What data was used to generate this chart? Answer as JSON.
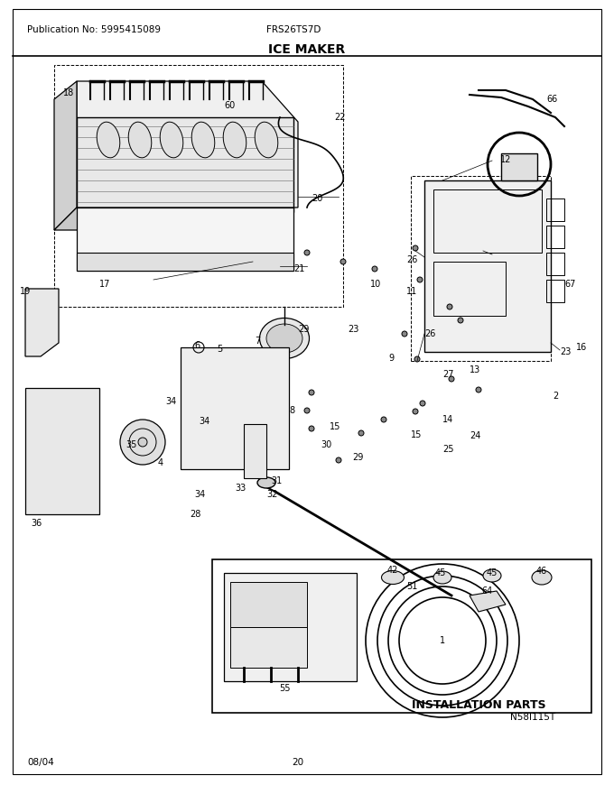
{
  "title": "ICE MAKER",
  "pub_no": "Publication No: 5995415089",
  "model": "FRS26TS7D",
  "date": "08/04",
  "page": "20",
  "install_label": "INSTALLATION PARTS",
  "bottom_label": "N58I115T",
  "bg_color": "#ffffff",
  "line_color": "#000000",
  "text_color": "#000000",
  "fig_width": 6.8,
  "fig_height": 8.8,
  "dpi": 100
}
